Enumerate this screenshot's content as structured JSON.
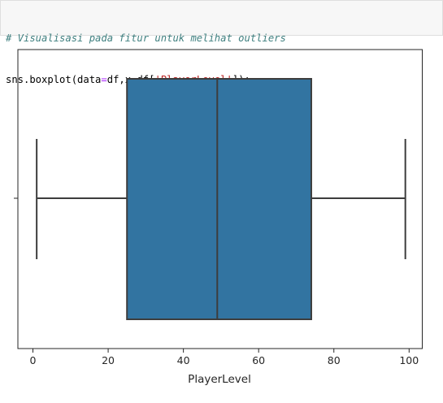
{
  "code": {
    "comment": "# Visualisasi pada fitur untuk melihat outliers",
    "call_prefix": "sns.boxplot(data",
    "eq1": "=",
    "arg1_value": "df,x",
    "eq2": "=",
    "arg2_prefix": "df[",
    "column_string": "'PlayerLevel'",
    "call_suffix": "]);"
  },
  "colors": {
    "box_fill": "#3274a1",
    "line": "#3d3d3d"
  },
  "chart_data": {
    "type": "boxplot",
    "orientation": "horizontal",
    "xlabel": "PlayerLevel",
    "xlim": [
      -4,
      103.5
    ],
    "xticks": [
      0,
      20,
      40,
      60,
      80,
      100
    ],
    "series": [
      {
        "min": 1,
        "q1": 25,
        "median": 49,
        "q3": 74,
        "max": 99
      }
    ],
    "grid": false
  }
}
